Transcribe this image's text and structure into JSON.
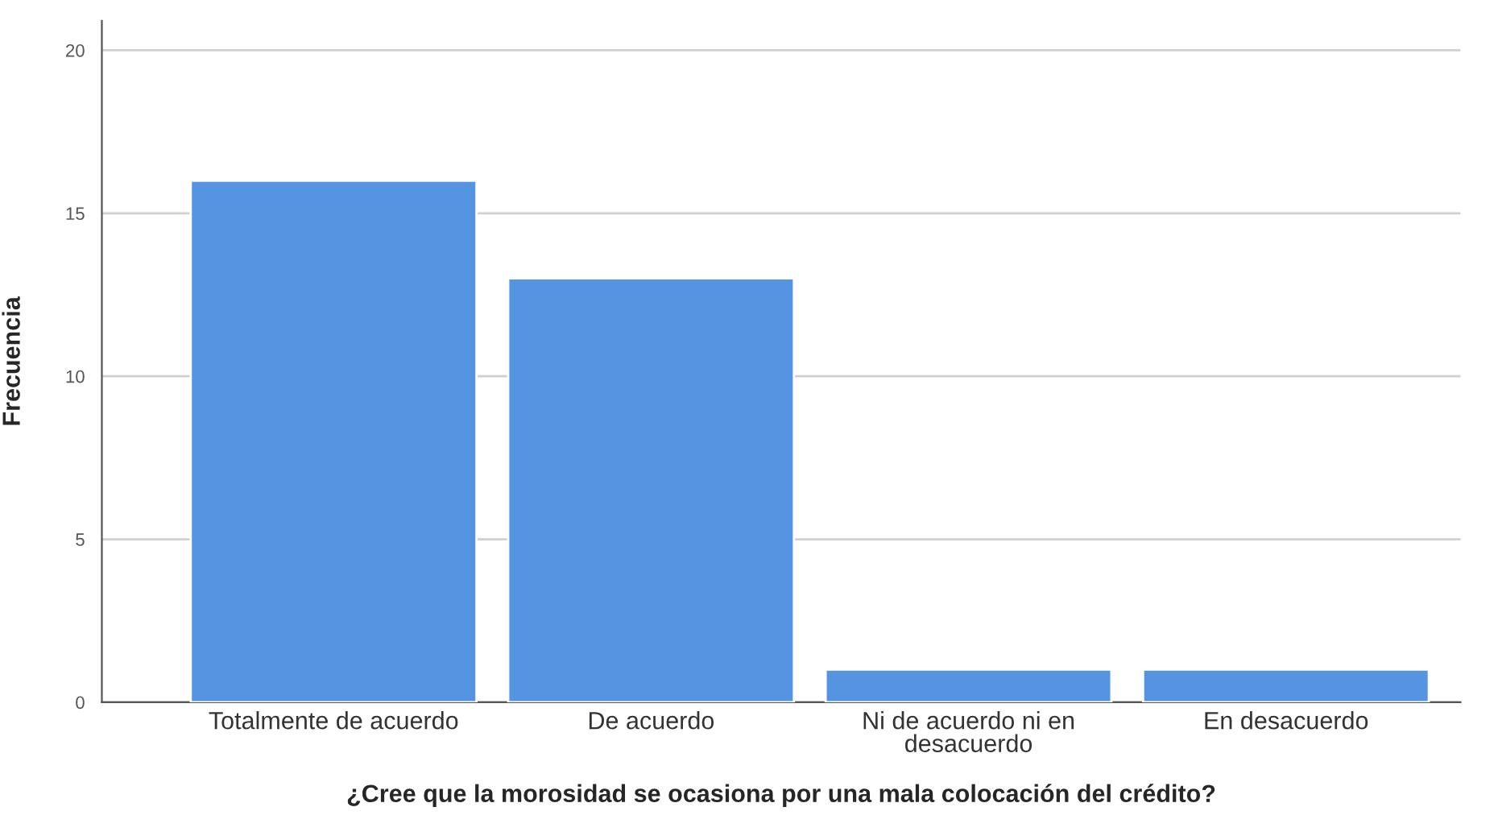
{
  "chart_data": {
    "type": "bar",
    "xlabel": "¿Cree que la morosidad se ocasiona por una mala colocación del crédito?",
    "ylabel": "Frecuencia",
    "categories": [
      "Totalmente de acuerdo",
      "De acuerdo",
      "Ni de acuerdo ni en\ndesacuerdo",
      "En desacuerdo"
    ],
    "values": [
      16,
      13,
      1,
      1
    ],
    "color": "#5594e0",
    "ylim": [
      0,
      20.9
    ],
    "yticks": [
      0,
      5,
      10,
      15,
      20
    ],
    "grid": "y"
  }
}
